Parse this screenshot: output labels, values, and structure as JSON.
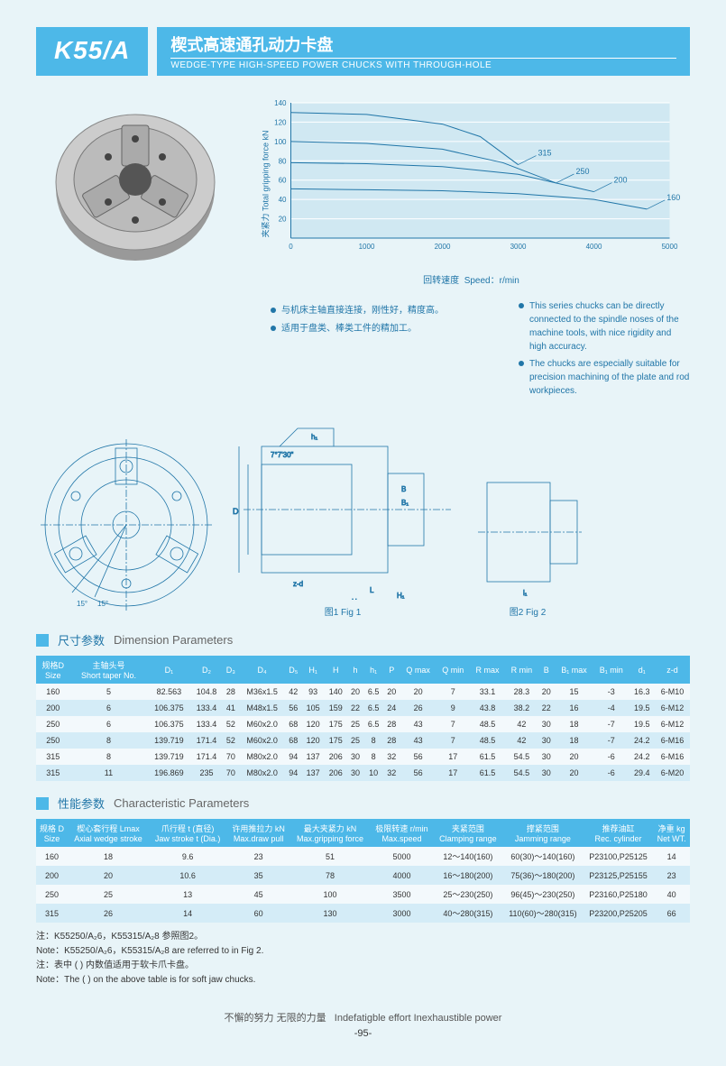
{
  "header": {
    "model": "K55/A",
    "title_cn": "楔式高速通孔动力卡盘",
    "title_en": "WEDGE-TYPE HIGH-SPEED POWER CHUCKS WITH THROUGH-HOLE"
  },
  "chart": {
    "ylabel": "夹紧力  Total gripping force kN",
    "xlabel_cn": "回转速度",
    "xlabel_en": "Speed：r/min",
    "type": "line",
    "xlim": [
      0,
      5000
    ],
    "ylim": [
      0,
      140
    ],
    "xticks": [
      0,
      1000,
      2000,
      3000,
      4000,
      5000
    ],
    "yticks": [
      20,
      40,
      60,
      80,
      100,
      120,
      140
    ],
    "bg": "#d0e8f2",
    "grid": "#ffffff",
    "stroke": "#2176a8",
    "series": [
      {
        "label": "315",
        "pts": [
          [
            0,
            130
          ],
          [
            1000,
            128
          ],
          [
            2000,
            118
          ],
          [
            2500,
            105
          ],
          [
            3000,
            76
          ]
        ]
      },
      {
        "label": "250",
        "pts": [
          [
            0,
            100
          ],
          [
            1000,
            98
          ],
          [
            2000,
            92
          ],
          [
            2800,
            78
          ],
          [
            3500,
            57
          ]
        ]
      },
      {
        "label": "200",
        "pts": [
          [
            0,
            78
          ],
          [
            1000,
            77
          ],
          [
            2000,
            74
          ],
          [
            3000,
            66
          ],
          [
            4000,
            48
          ]
        ]
      },
      {
        "label": "160",
        "pts": [
          [
            0,
            51
          ],
          [
            1000,
            50
          ],
          [
            2000,
            49
          ],
          [
            3000,
            46
          ],
          [
            4000,
            40
          ],
          [
            4700,
            30
          ]
        ]
      }
    ]
  },
  "bullets_cn": [
    "与机床主轴直接连接，刚性好，精度高。",
    "适用于盘类、棒类工件的精加工。"
  ],
  "bullets_en": [
    "This series chucks can be directly connected to the spindle noses of the machine tools, with nice rigidity and high accuracy.",
    "The chucks are especially suitable for precision machining of the plate and rod workpieces."
  ],
  "fig1": "图1   Fig 1",
  "fig2": "图2   Fig 2",
  "sec1_cn": "尺寸参数",
  "sec1_en": "Dimension Parameters",
  "table1": {
    "columns": [
      "规格D\nSize",
      "主轴头号\nShort taper No.",
      "D₁",
      "D₂",
      "D₃",
      "D₄",
      "D₅",
      "H₁",
      "H",
      "h",
      "h₁",
      "P",
      "Q max",
      "Q min",
      "R max",
      "R min",
      "B",
      "B₁ max",
      "B₁ min",
      "d₁",
      "z-d"
    ],
    "rows": [
      [
        "160",
        "5",
        "82.563",
        "104.8",
        "28",
        "M36x1.5",
        "42",
        "93",
        "140",
        "20",
        "6.5",
        "20",
        "20",
        "7",
        "33.1",
        "28.3",
        "20",
        "15",
        "-3",
        "16.3",
        "6-M10"
      ],
      [
        "200",
        "6",
        "106.375",
        "133.4",
        "41",
        "M48x1.5",
        "56",
        "105",
        "159",
        "22",
        "6.5",
        "24",
        "26",
        "9",
        "43.8",
        "38.2",
        "22",
        "16",
        "-4",
        "19.5",
        "6-M12"
      ],
      [
        "250",
        "6",
        "106.375",
        "133.4",
        "52",
        "M60x2.0",
        "68",
        "120",
        "175",
        "25",
        "6.5",
        "28",
        "43",
        "7",
        "48.5",
        "42",
        "30",
        "18",
        "-7",
        "19.5",
        "6-M12"
      ],
      [
        "250",
        "8",
        "139.719",
        "171.4",
        "52",
        "M60x2.0",
        "68",
        "120",
        "175",
        "25",
        "8",
        "28",
        "43",
        "7",
        "48.5",
        "42",
        "30",
        "18",
        "-7",
        "24.2",
        "6-M16"
      ],
      [
        "315",
        "8",
        "139.719",
        "171.4",
        "70",
        "M80x2.0",
        "94",
        "137",
        "206",
        "30",
        "8",
        "32",
        "56",
        "17",
        "61.5",
        "54.5",
        "30",
        "20",
        "-6",
        "24.2",
        "6-M16"
      ],
      [
        "315",
        "11",
        "196.869",
        "235",
        "70",
        "M80x2.0",
        "94",
        "137",
        "206",
        "30",
        "10",
        "32",
        "56",
        "17",
        "61.5",
        "54.5",
        "30",
        "20",
        "-6",
        "29.4",
        "6-M20"
      ]
    ]
  },
  "sec2_cn": "性能参数",
  "sec2_en": "Characteristic Parameters",
  "table2": {
    "columns": [
      "规格 D\nSize",
      "楔心套行程 Lmax\nAxial wedge stroke",
      "爪行程 t (直径)\nJaw stroke t (Dia.)",
      "许用推拉力 kN\nMax.draw pull",
      "最大夹紧力 kN\nMax.gripping force",
      "极限转速 r/min\nMax.speed",
      "夹紧范围\nClamping range",
      "撑紧范围\nJamming range",
      "推荐油缸\nRec. cylinder",
      "净重 kg\nNet WT."
    ],
    "rows": [
      [
        "160",
        "18",
        "9.6",
        "23",
        "51",
        "5000",
        "12～140(160)",
        "60(30)～140(160)",
        "P23100,P25125",
        "14"
      ],
      [
        "200",
        "20",
        "10.6",
        "35",
        "78",
        "4000",
        "16～180(200)",
        "75(36)～180(200)",
        "P23125,P25155",
        "23"
      ],
      [
        "250",
        "25",
        "13",
        "45",
        "100",
        "3500",
        "25～230(250)",
        "96(45)～230(250)",
        "P23160,P25180",
        "40"
      ],
      [
        "315",
        "26",
        "14",
        "60",
        "130",
        "3000",
        "40～280(315)",
        "110(60)～280(315)",
        "P23200,P25205",
        "66"
      ]
    ]
  },
  "notes": [
    "注：K55250/A₂6，K55315/A₂8 参照图2。",
    "Note：K55250/A₂6，K55315/A₂8 are referred to in Fig 2.",
    "注：表中 (  ) 内数值适用于软卡爪卡盘。",
    "Note：The (  ) on the above table is for soft jaw chucks."
  ],
  "footer_cn": "不懈的努力 无限的力量",
  "footer_en": "Indefatigble effort  Inexhaustible power",
  "page": "-95-"
}
